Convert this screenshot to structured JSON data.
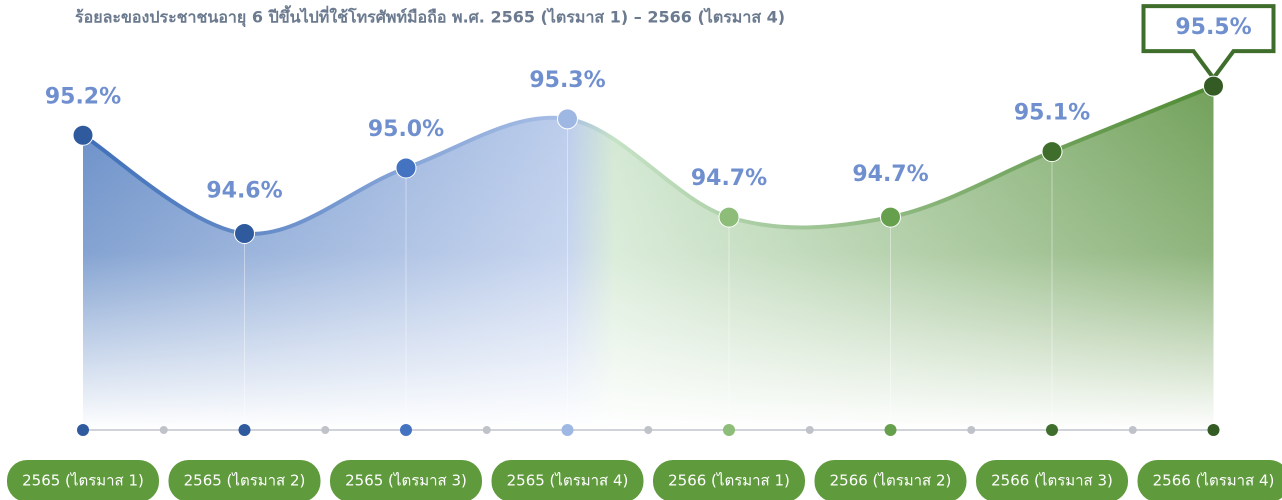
{
  "chart_data": {
    "type": "area",
    "title": "ร้อยละของประชาชนอายุ 6 ปีขึ้นไปที่ใช้โทรศัพท์มือถือ พ.ศ. 2565 (ไตรมาส 1) – 2566 (ไตรมาส 4)",
    "categories": [
      "2565 (ไตรมาส 1)",
      "2565 (ไตรมาส 2)",
      "2565 (ไตรมาส 3)",
      "2565 (ไตรมาส 4)",
      "2566 (ไตรมาส 1)",
      "2566 (ไตรมาส 2)",
      "2566 (ไตรมาส 3)",
      "2566 (ไตรมาส 4)"
    ],
    "values": [
      95.2,
      94.6,
      95.0,
      95.3,
      94.7,
      94.7,
      95.1,
      95.5
    ],
    "value_labels": [
      "95.2%",
      "94.6%",
      "95.0%",
      "95.3%",
      "94.7%",
      "94.7%",
      "95.1%",
      "95.5%"
    ],
    "colors": [
      "#2f5b9e",
      "#2f5b9e",
      "#4473c2",
      "#9fb8e3",
      "#8dbd78",
      "#67a04c",
      "#3f6e2c",
      "#355b24"
    ],
    "label_color": "#6f8fcf",
    "category_color": "#5f9a3d",
    "ylim": [
      93.4,
      95.8
    ]
  }
}
